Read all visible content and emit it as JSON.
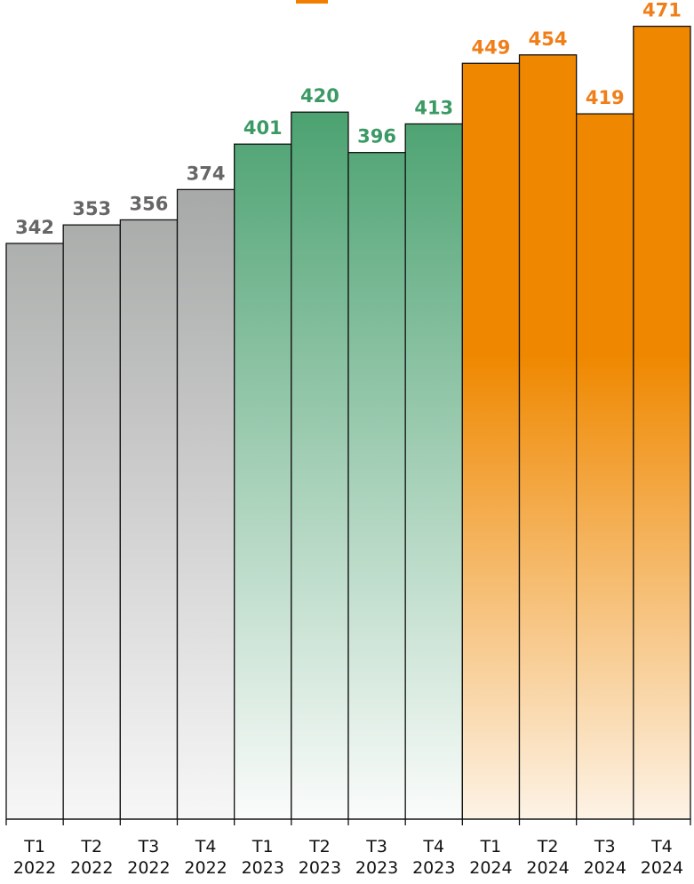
{
  "chart_data": {
    "type": "bar",
    "categories": [
      [
        "T1",
        "2022"
      ],
      [
        "T2",
        "2022"
      ],
      [
        "T3",
        "2022"
      ],
      [
        "T4",
        "2022"
      ],
      [
        "T1",
        "2023"
      ],
      [
        "T2",
        "2023"
      ],
      [
        "T3",
        "2023"
      ],
      [
        "T4",
        "2023"
      ],
      [
        "T1",
        "2024"
      ],
      [
        "T2",
        "2024"
      ],
      [
        "T3",
        "2024"
      ],
      [
        "T4",
        "2024"
      ]
    ],
    "values": [
      342,
      353,
      356,
      374,
      401,
      420,
      396,
      413,
      449,
      454,
      419,
      471
    ],
    "groups": [
      {
        "year": "2022",
        "top_color": "#919492",
        "bottom_color": "#f7f7f7",
        "label_color": "#666666"
      },
      {
        "year": "2023",
        "top_color": "#35965f",
        "bottom_color": "#fbfcfb",
        "label_color": "#3b9a64"
      },
      {
        "year": "2024",
        "top_color": "#ef8800",
        "bottom_color": "#fdf3e6",
        "label_color": "#f07f1a"
      }
    ],
    "title": "",
    "xlabel": "",
    "ylabel": "",
    "ylim": [
      0,
      475
    ],
    "grid": false,
    "legend": "none",
    "bar_outline_color": "#111111"
  }
}
